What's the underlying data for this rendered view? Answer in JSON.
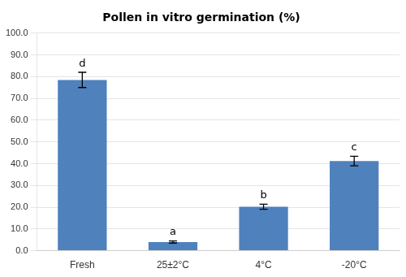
{
  "chart_data": {
    "type": "bar",
    "title": "Pollen in vitro germination (%)",
    "categories": [
      "Fresh",
      "25±2°C",
      "4°C",
      "-20°C"
    ],
    "values": [
      78.5,
      4.0,
      20.2,
      41.2
    ],
    "errors": [
      3.5,
      0.5,
      1.2,
      2.2
    ],
    "letters": [
      "d",
      "a",
      "b",
      "c"
    ],
    "color": "#4F81BD",
    "ylim": [
      0,
      100
    ],
    "yticks": [
      {
        "value": 0,
        "label": "0.0"
      },
      {
        "value": 10,
        "label": "10.0"
      },
      {
        "value": 20,
        "label": "20.0"
      },
      {
        "value": 30,
        "label": "30.0"
      },
      {
        "value": 40,
        "label": "40.0"
      },
      {
        "value": 50,
        "label": "50.0"
      },
      {
        "value": 60,
        "label": "60.0"
      },
      {
        "value": 70,
        "label": "70.0"
      },
      {
        "value": 80,
        "label": "80.0"
      },
      {
        "value": 90,
        "label": "90.0"
      },
      {
        "value": 100,
        "label": "100.0"
      }
    ],
    "grid": true
  }
}
